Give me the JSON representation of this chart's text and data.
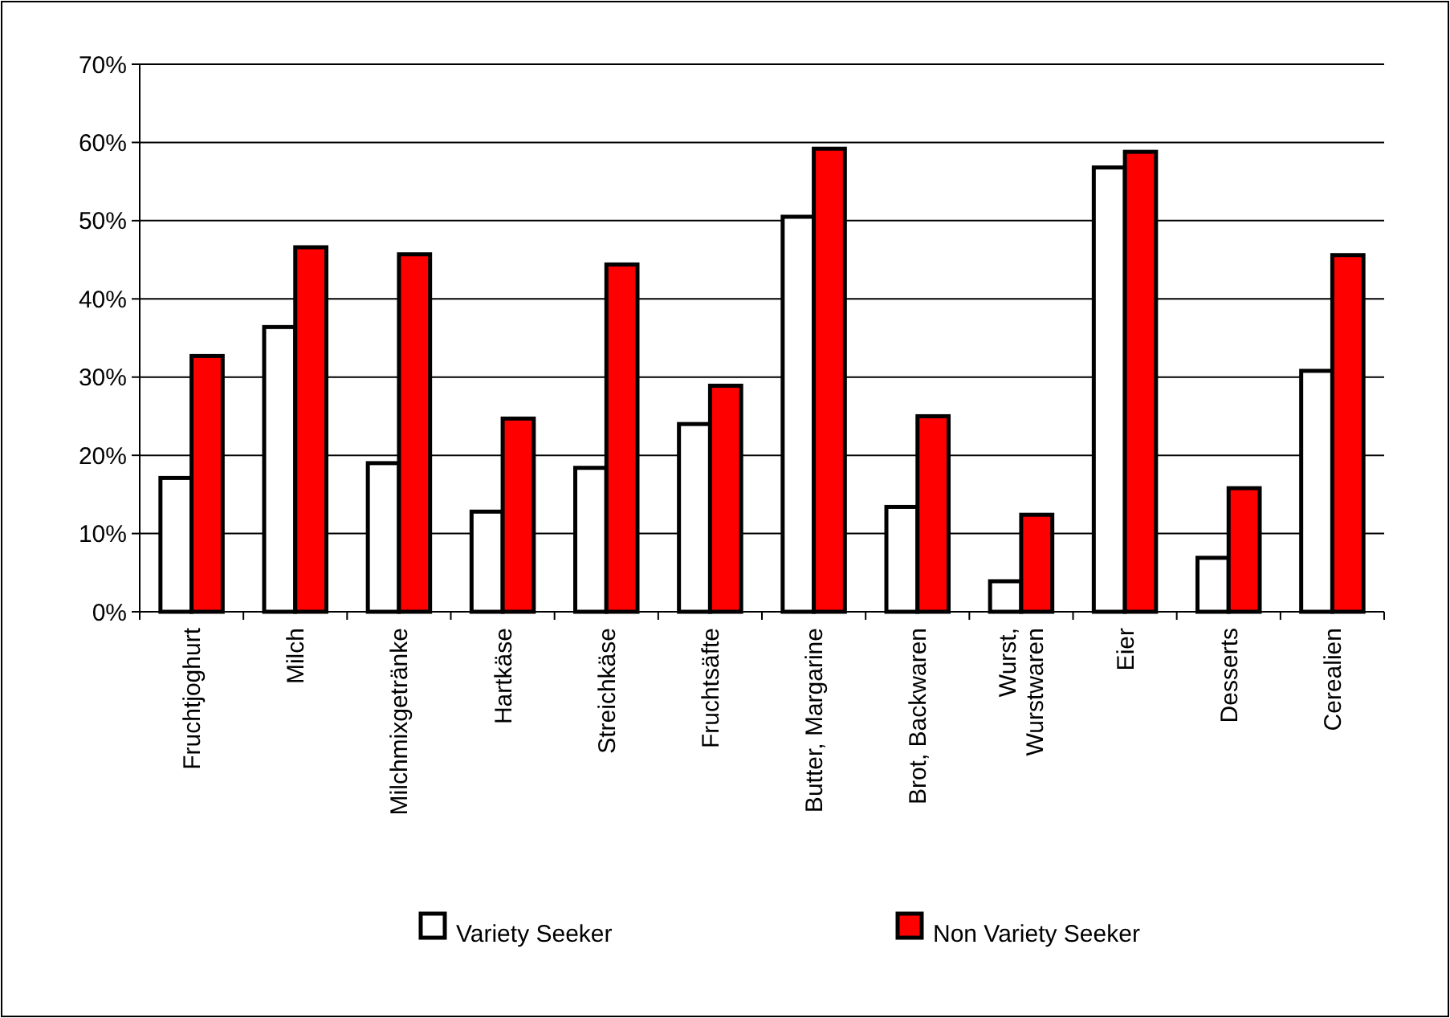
{
  "chart_data": {
    "type": "bar",
    "categories": [
      "Fruchtjoghurt",
      "Milch",
      "Milchmixgetränke",
      "Hartkäse",
      "Streichkäse",
      "Fruchtsäfte",
      "Butter, Margarine",
      "Brot, Backwaren",
      "Wurst,\nWurstwaren",
      "Eier",
      "Desserts",
      "Cerealien"
    ],
    "series": [
      {
        "name": "Variety Seeker",
        "color": "#ffffff",
        "values": [
          17.1,
          36.4,
          19,
          12.8,
          18.4,
          24,
          50.5,
          13.4,
          3.9,
          56.8,
          6.9,
          30.8
        ]
      },
      {
        "name": "Non Variety Seeker",
        "color": "#ff0000",
        "values": [
          32.7,
          46.6,
          45.7,
          24.7,
          44.4,
          28.9,
          59.2,
          25,
          12.4,
          58.8,
          15.8,
          45.6
        ]
      }
    ],
    "ylim": [
      0,
      70
    ],
    "yticks": [
      {
        "value": 0,
        "label": "0%"
      },
      {
        "value": 10,
        "label": "10%"
      },
      {
        "value": 20,
        "label": "20%"
      },
      {
        "value": 30,
        "label": "30%"
      },
      {
        "value": 40,
        "label": "40%"
      },
      {
        "value": 50,
        "label": "50%"
      },
      {
        "value": 60,
        "label": "60%"
      },
      {
        "value": 70,
        "label": "70%"
      }
    ],
    "grid": "y",
    "legend": "bottom"
  }
}
